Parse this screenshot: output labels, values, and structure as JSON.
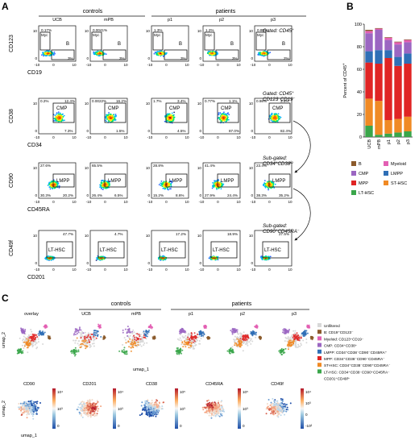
{
  "panels": {
    "a": "A",
    "b": "B",
    "c": "C"
  },
  "panel_a": {
    "group_controls": "controls",
    "group_patients": "patients",
    "columns": [
      "UCB",
      "mPB",
      "p1",
      "p2",
      "p3"
    ],
    "rows": [
      {
        "y_label": "CD123",
        "x_label": "CD19",
        "gates": [
          "Myc",
          "B"
        ],
        "values": [
          [
            "0.17%",
            "3%"
          ],
          [
            "0.0041%",
            "3%"
          ],
          [
            "1.3%",
            "3%"
          ],
          [
            "1.2%",
            "3%"
          ],
          [
            "0.89%",
            "2%"
          ]
        ],
        "note": [
          "Gated: CD45",
          "+"
        ]
      },
      {
        "y_label": "CD38",
        "x_label": "CD34",
        "gates": [
          "CMP"
        ],
        "values": [
          [
            "0.2%",
            "12.4%",
            "7.3%"
          ],
          [
            "0.0022%",
            "16.2%",
            "1.5%"
          ],
          [
            "1.7%",
            "3.4%",
            "4.5%"
          ],
          [
            "0.77%",
            "1.1%",
            "87.0%"
          ],
          [
            "0.98%",
            "3.4%",
            "82.4%"
          ]
        ],
        "note": [
          "Gated: CD45",
          "+",
          "CD123",
          "–",
          "CD19",
          "–"
        ]
      },
      {
        "y_label": "CD90",
        "x_label": "CD45RA",
        "gates": [
          "LMPP"
        ],
        "values": [
          [
            "27.6%",
            "30.3%",
            "20.2%"
          ],
          [
            "65.5%",
            "26.4%",
            "6.5%"
          ],
          [
            "28.8%",
            "15.2%",
            "8.6%"
          ],
          [
            "41.4%",
            "27.9%",
            "24.4%"
          ],
          [
            "23.4%",
            "38.3%",
            "35.2%"
          ]
        ],
        "note": [
          "Sub-gated:",
          "CD34",
          "+",
          "CD38",
          "lo"
        ]
      },
      {
        "y_label": "CD49f",
        "x_label": "CD201",
        "gates": [
          "LT-HSC"
        ],
        "values": [
          [
            "47.7%"
          ],
          [
            "4.7%"
          ],
          [
            "17.2%"
          ],
          [
            "18.9%"
          ],
          [
            "27.5%"
          ]
        ],
        "note": [
          "Sub-gated:",
          "CD90",
          "+",
          "CD45RA",
          "–"
        ]
      }
    ],
    "tick_labels": [
      "-10",
      "0",
      "10"
    ]
  },
  "chart_data": {
    "type": "bar",
    "stacked": true,
    "ylabel": "Percent of CD45",
    "ylabel_sup": "+",
    "ylim": [
      0,
      100
    ],
    "yticks": [
      0,
      20,
      40,
      60,
      80,
      100
    ],
    "categories": [
      "UCB",
      "mPB",
      "p1",
      "p2",
      "p3"
    ],
    "series": [
      {
        "name": "LT-HSC",
        "color": "#3aa64a",
        "values": [
          10,
          2,
          3,
          4,
          5
        ]
      },
      {
        "name": "ST-HSC",
        "color": "#f08a24",
        "values": [
          24,
          30,
          12,
          12,
          13
        ]
      },
      {
        "name": "MPP",
        "color": "#e02424",
        "values": [
          32,
          33,
          55,
          47,
          47
        ]
      },
      {
        "name": "LMPP",
        "color": "#2f6fb6",
        "values": [
          10,
          12,
          7,
          8,
          9
        ]
      },
      {
        "name": "CMP",
        "color": "#9b66c2",
        "values": [
          16,
          18,
          9,
          11,
          10
        ]
      },
      {
        "name": "Myeloid",
        "color": "#e35fb3",
        "values": [
          2,
          1,
          2,
          2,
          2
        ]
      },
      {
        "name": "B",
        "color": "#8b5a2b",
        "values": [
          1,
          0.5,
          0.5,
          0.5,
          0.5
        ]
      }
    ],
    "legend": [
      [
        "B",
        "Myeloid"
      ],
      [
        "CMP",
        "LMPP"
      ],
      [
        "MPP",
        "ST-HSC"
      ],
      [
        "LT-HSC",
        ""
      ]
    ]
  },
  "panel_c": {
    "group_controls": "controls",
    "group_patients": "patients",
    "columns": [
      "overlay",
      "UCB",
      "mPB",
      "p1",
      "p2",
      "p3"
    ],
    "xlabel": "umap_1",
    "ylabel": "umap_2",
    "legend": [
      {
        "name": "Unfiltered",
        "color": "#d8d8d8",
        "text": "Unfiltered"
      },
      {
        "name": "B",
        "color": "#8b5a2b",
        "text": "B: CD19⁺CD123⁻"
      },
      {
        "name": "Myeloid",
        "color": "#e35fb3",
        "text": "Myeloid: CD123⁺CD19⁻"
      },
      {
        "name": "CMP",
        "color": "#9b66c2",
        "text": "CMP: CD34⁺CD38⁺"
      },
      {
        "name": "LMPP",
        "color": "#2f6fb6",
        "text": "LMPP: CD34⁺CD38⁻CD90⁻CD45RA⁺"
      },
      {
        "name": "MPP",
        "color": "#e02424",
        "text": "MPP: CD34⁺CD38⁻CD90⁻CD45RA⁻"
      },
      {
        "name": "ST-HSC",
        "color": "#f08a24",
        "text": "ST-HSC: CD34⁺CD38⁻CD90⁺CD45RA⁻"
      },
      {
        "name": "LT-HSC",
        "color": "#3aa64a",
        "text": "LT-HSC: CD34⁺CD38⁻CD90⁺CD45RA⁻"
      },
      {
        "name": "LT-HSC-2",
        "color": "",
        "text": "CD201⁺CD49f⁺"
      }
    ],
    "markers": [
      "CD90",
      "CD201",
      "CD38",
      "CD45RA",
      "CD49f"
    ],
    "colorbar_ticks": [
      [
        "10⁴",
        "10³",
        "0"
      ],
      [
        "10⁴",
        "10³",
        "0"
      ],
      [
        "10⁵",
        "10³",
        "0"
      ],
      [
        "10⁵",
        "10³",
        "0"
      ],
      [
        "10⁴",
        "10³",
        "0",
        "-10²"
      ]
    ]
  }
}
